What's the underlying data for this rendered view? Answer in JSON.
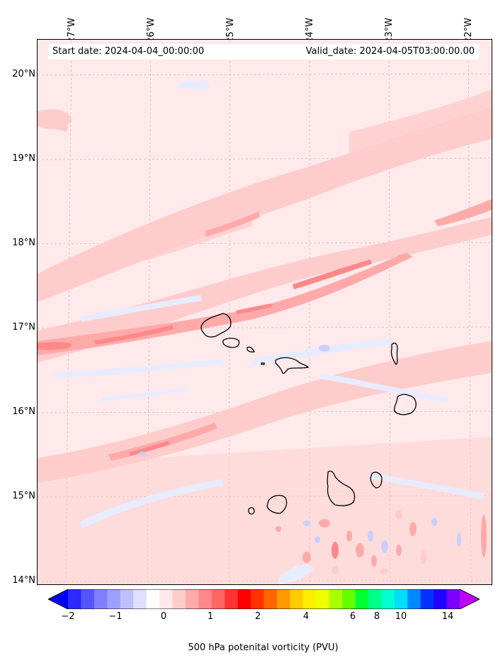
{
  "header": {
    "start_date": "Start date: 2024-04-04_00:00:00",
    "valid_date": "Valid_date: 2024-04-05T03:00:00.00"
  },
  "longitude_labels": [
    "27°W",
    "26°W",
    "25°W",
    "24°W",
    "23°W",
    "22°W"
  ],
  "latitude_labels": [
    "20°N",
    "19°N",
    "18°N",
    "17°N",
    "16°N",
    "15°N",
    "14°N"
  ],
  "colorbar": {
    "label": "500 hPa potenital vorticity (PVU)",
    "ticks": [
      "−2",
      "−1",
      "0",
      "1",
      "2",
      "4",
      "6",
      "8",
      "10",
      "14"
    ],
    "colors": [
      "#0000ff",
      "#2b2bff",
      "#5555ff",
      "#7f7fff",
      "#9f9fff",
      "#bfbfff",
      "#dfdfff",
      "#ffffff",
      "#ffe9ea",
      "#ffcccc",
      "#ffaaaa",
      "#ff8888",
      "#ff6666",
      "#ff3333",
      "#ff0000",
      "#ff3300",
      "#ff6600",
      "#ff9900",
      "#ffcc00",
      "#ffee00",
      "#eeff00",
      "#aaff00",
      "#66ff00",
      "#00ff33",
      "#00ff88",
      "#00ffcc",
      "#00ddff",
      "#0088ff",
      "#0033ff",
      "#2200ff",
      "#7a00ff",
      "#c000ff"
    ]
  }
}
